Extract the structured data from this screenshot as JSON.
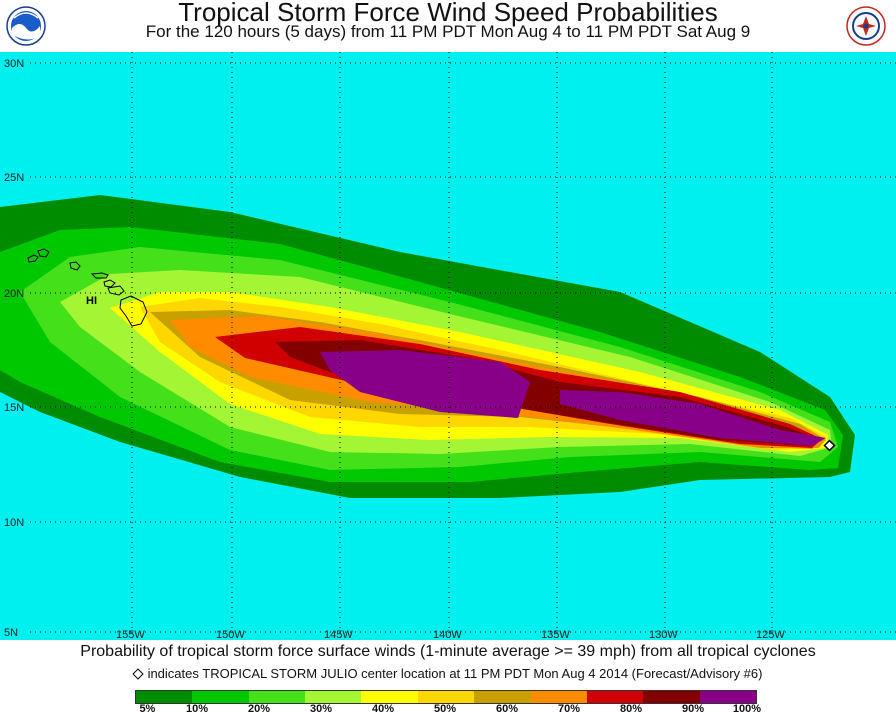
{
  "header": {
    "title": "Tropical Storm Force Wind Speed Probabilities",
    "subtitle": "For the 120 hours (5 days) from 11 PM PDT Mon Aug 4 to 11 PM PDT Sat Aug 9",
    "left_logo_icon": "noaa-logo-icon",
    "right_logo_icon": "national-weather-service-logo-icon"
  },
  "map": {
    "background_color": "#00f0f0",
    "grid": true,
    "lat_labels": [
      "30N",
      "25N",
      "20N",
      "15N",
      "10N",
      "5N"
    ],
    "lon_labels": [
      "155W",
      "150W",
      "145W",
      "140W",
      "135W",
      "130W",
      "125W"
    ],
    "island_label": "HI",
    "storm_marker_icon": "diamond-icon"
  },
  "caption": "Probability of tropical storm force surface winds (1-minute average >= 39 mph) from all tropical cyclones",
  "marker_note": "indicates TROPICAL STORM JULIO center location at 11 PM PDT Mon Aug 4 2014 (Forecast/Advisory #6)",
  "legend": {
    "colors": [
      "#008c00",
      "#00c800",
      "#44e01a",
      "#a4f534",
      "#ffff00",
      "#ffd700",
      "#c8a000",
      "#ff8c00",
      "#d00000",
      "#820000",
      "#880088"
    ],
    "labels": [
      "5%",
      "10%",
      "20%",
      "30%",
      "40%",
      "50%",
      "60%",
      "70%",
      "80%",
      "90%",
      "100%"
    ]
  }
}
